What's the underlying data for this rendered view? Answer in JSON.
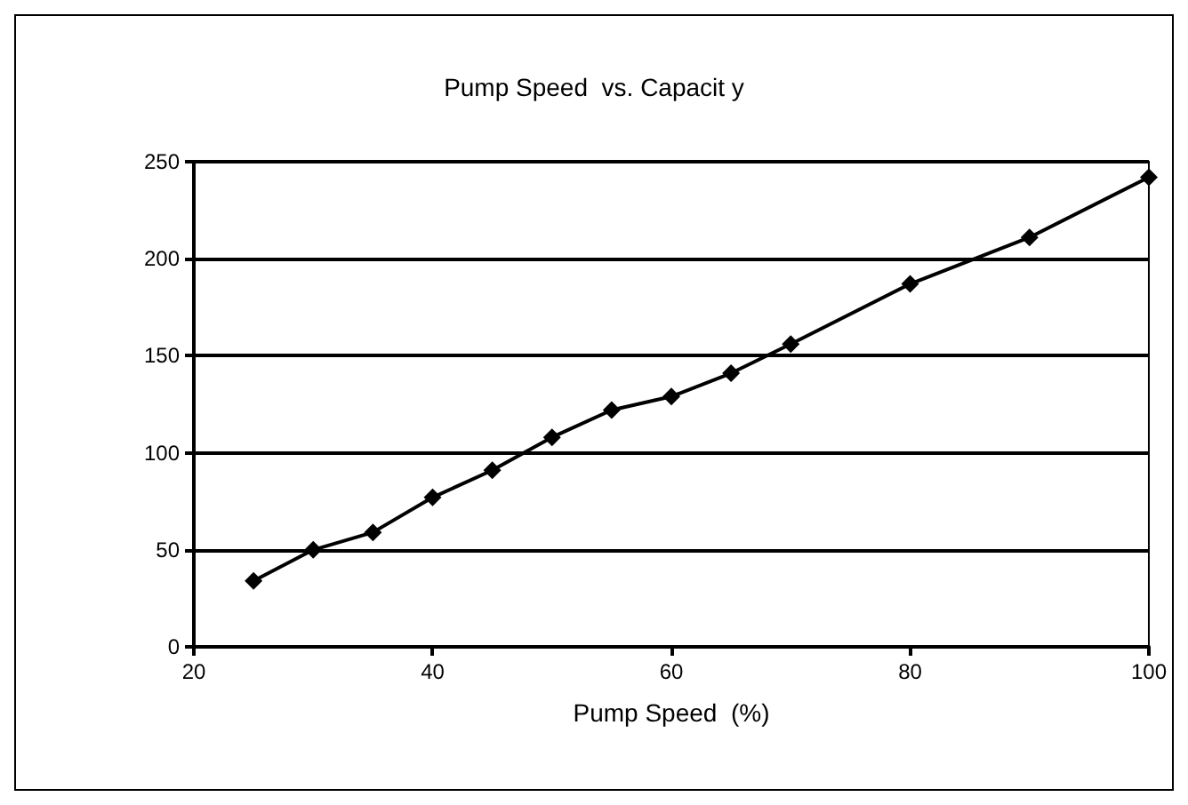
{
  "chart_data": {
    "type": "line",
    "title": "Pump Speed  vs. Capacit y",
    "xlabel": "Pump Speed  (%)",
    "x": [
      25,
      30,
      35,
      40,
      45,
      50,
      55,
      60,
      65,
      70,
      80,
      90,
      100
    ],
    "series": [
      {
        "color": "#000000",
        "values": [
          34,
          50,
          59,
          77,
          91,
          108,
          122,
          129,
          141,
          156,
          187,
          211,
          242
        ]
      }
    ],
    "xlim": [
      20,
      100
    ],
    "xticks": [
      20,
      40,
      60,
      80,
      100
    ],
    "ylim": [
      0,
      250
    ],
    "yticks": [
      0,
      50,
      100,
      150,
      200,
      250
    ],
    "grid": "y",
    "marker": "diamond",
    "line_style": "solid"
  }
}
